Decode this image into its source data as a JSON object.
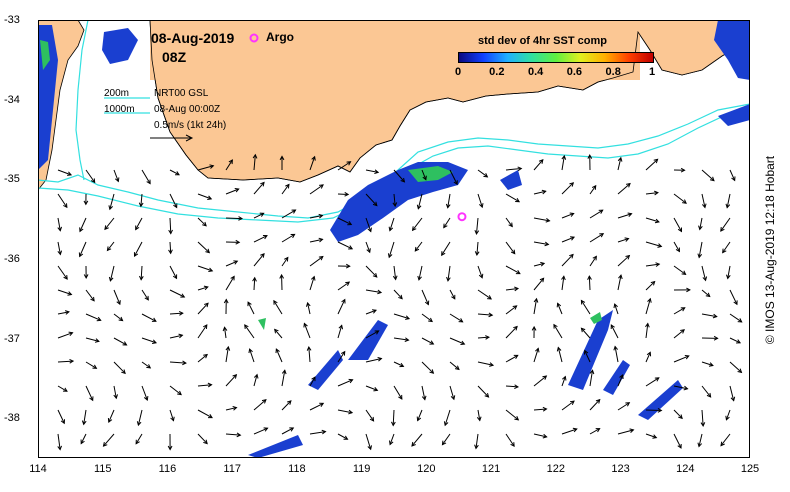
{
  "header": {
    "date": "08-Aug-2019",
    "hour": "08Z",
    "argo_label": "Argo"
  },
  "colorbar": {
    "title": "std dev of 4hr SST comp",
    "ticks": [
      "0",
      "0.2",
      "0.4",
      "0.6",
      "0.8",
      "1"
    ]
  },
  "legend": {
    "depth1": "200m",
    "depth2": "1000m",
    "product": "NRT00 GSL",
    "analysis_time": "08-Aug 00:00Z",
    "vector_scale": "0.5m/s (1kt 24h)"
  },
  "credit": "© IMOS 13-Aug-2019 12:18 Hobart",
  "axes": {
    "x_ticks": [
      "114",
      "115",
      "116",
      "117",
      "118",
      "119",
      "120",
      "121",
      "122",
      "123",
      "124",
      "125"
    ],
    "y_ticks": [
      "-33",
      "-34",
      "-35",
      "-36",
      "-37",
      "-38"
    ],
    "x_range": [
      114,
      125
    ],
    "y_range": [
      -38.5,
      -33.0
    ]
  },
  "argo_float": {
    "lon": 120.55,
    "lat": -35.47,
    "color": "#ff33ff"
  },
  "colors": {
    "land": "#fbc794",
    "isobath": "#33e0e0",
    "frame": "#000000"
  }
}
